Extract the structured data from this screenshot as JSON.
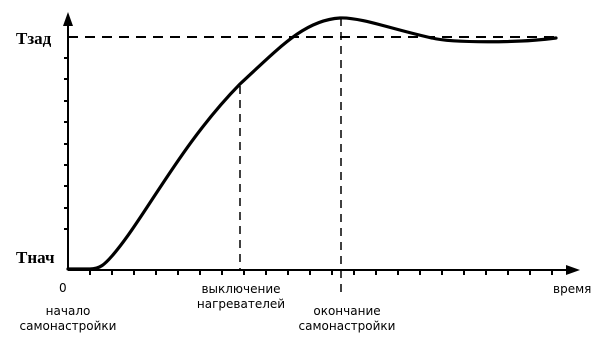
{
  "diagram": {
    "y_labels": {
      "setpoint": "Тзад",
      "initial": "Тнач"
    },
    "x_labels": {
      "origin": "0",
      "start_line1": "начало",
      "start_line2": "самонастройки",
      "heaters_line1": "выключение",
      "heaters_line2": "нагревателей",
      "end_line1": "окончание",
      "end_line2": "самонастройки",
      "axis_end": "время"
    },
    "colors": {
      "line": "#000000",
      "background": "#ffffff"
    }
  }
}
